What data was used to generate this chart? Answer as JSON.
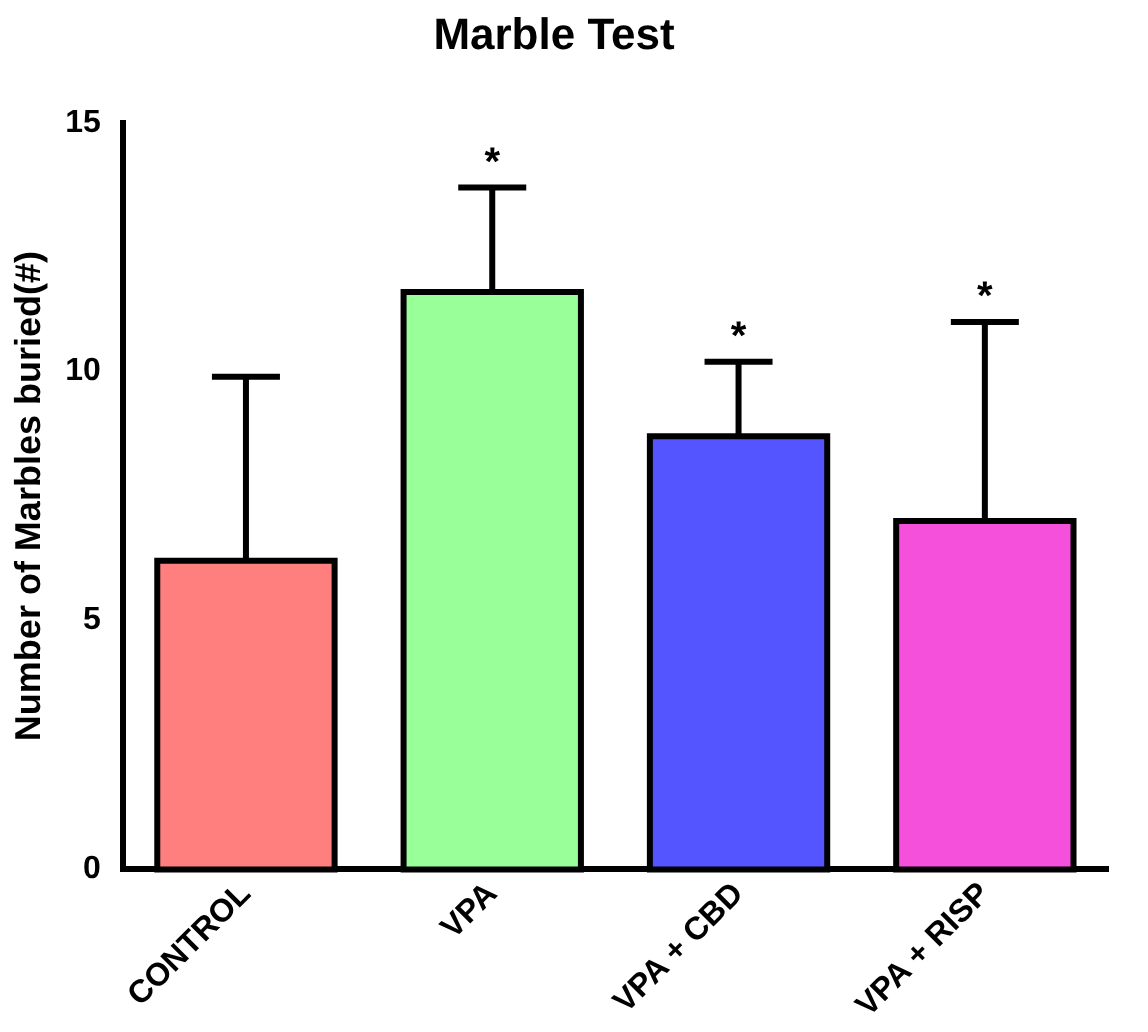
{
  "chart_data": {
    "type": "bar",
    "title": "Marble Test",
    "ylabel": "Number of Marbles buried(#)",
    "categories": [
      "CONTROL",
      "VPA",
      "VPA + CBD",
      "VPA + RISP"
    ],
    "values": [
      6.2,
      11.6,
      8.7,
      7.0
    ],
    "colors": [
      "#ff7f7f",
      "#99ff99",
      "#5555ff",
      "#f550dc"
    ],
    "errors": [
      [
        6.2,
        9.9
      ],
      [
        11.6,
        13.7
      ],
      [
        8.7,
        10.2
      ],
      [
        7.0,
        11.0
      ]
    ],
    "ylim": [
      0,
      15
    ],
    "yticks": [
      0,
      5,
      10,
      15
    ],
    "grid": false,
    "legend": false,
    "annotations": [
      {
        "text": "*",
        "x": "VPA",
        "y": 13.7
      },
      {
        "text": "*",
        "x": "VPA + CBD",
        "y": 10.2
      },
      {
        "text": "*",
        "x": "VPA + RISP",
        "y": 11.0
      }
    ]
  }
}
